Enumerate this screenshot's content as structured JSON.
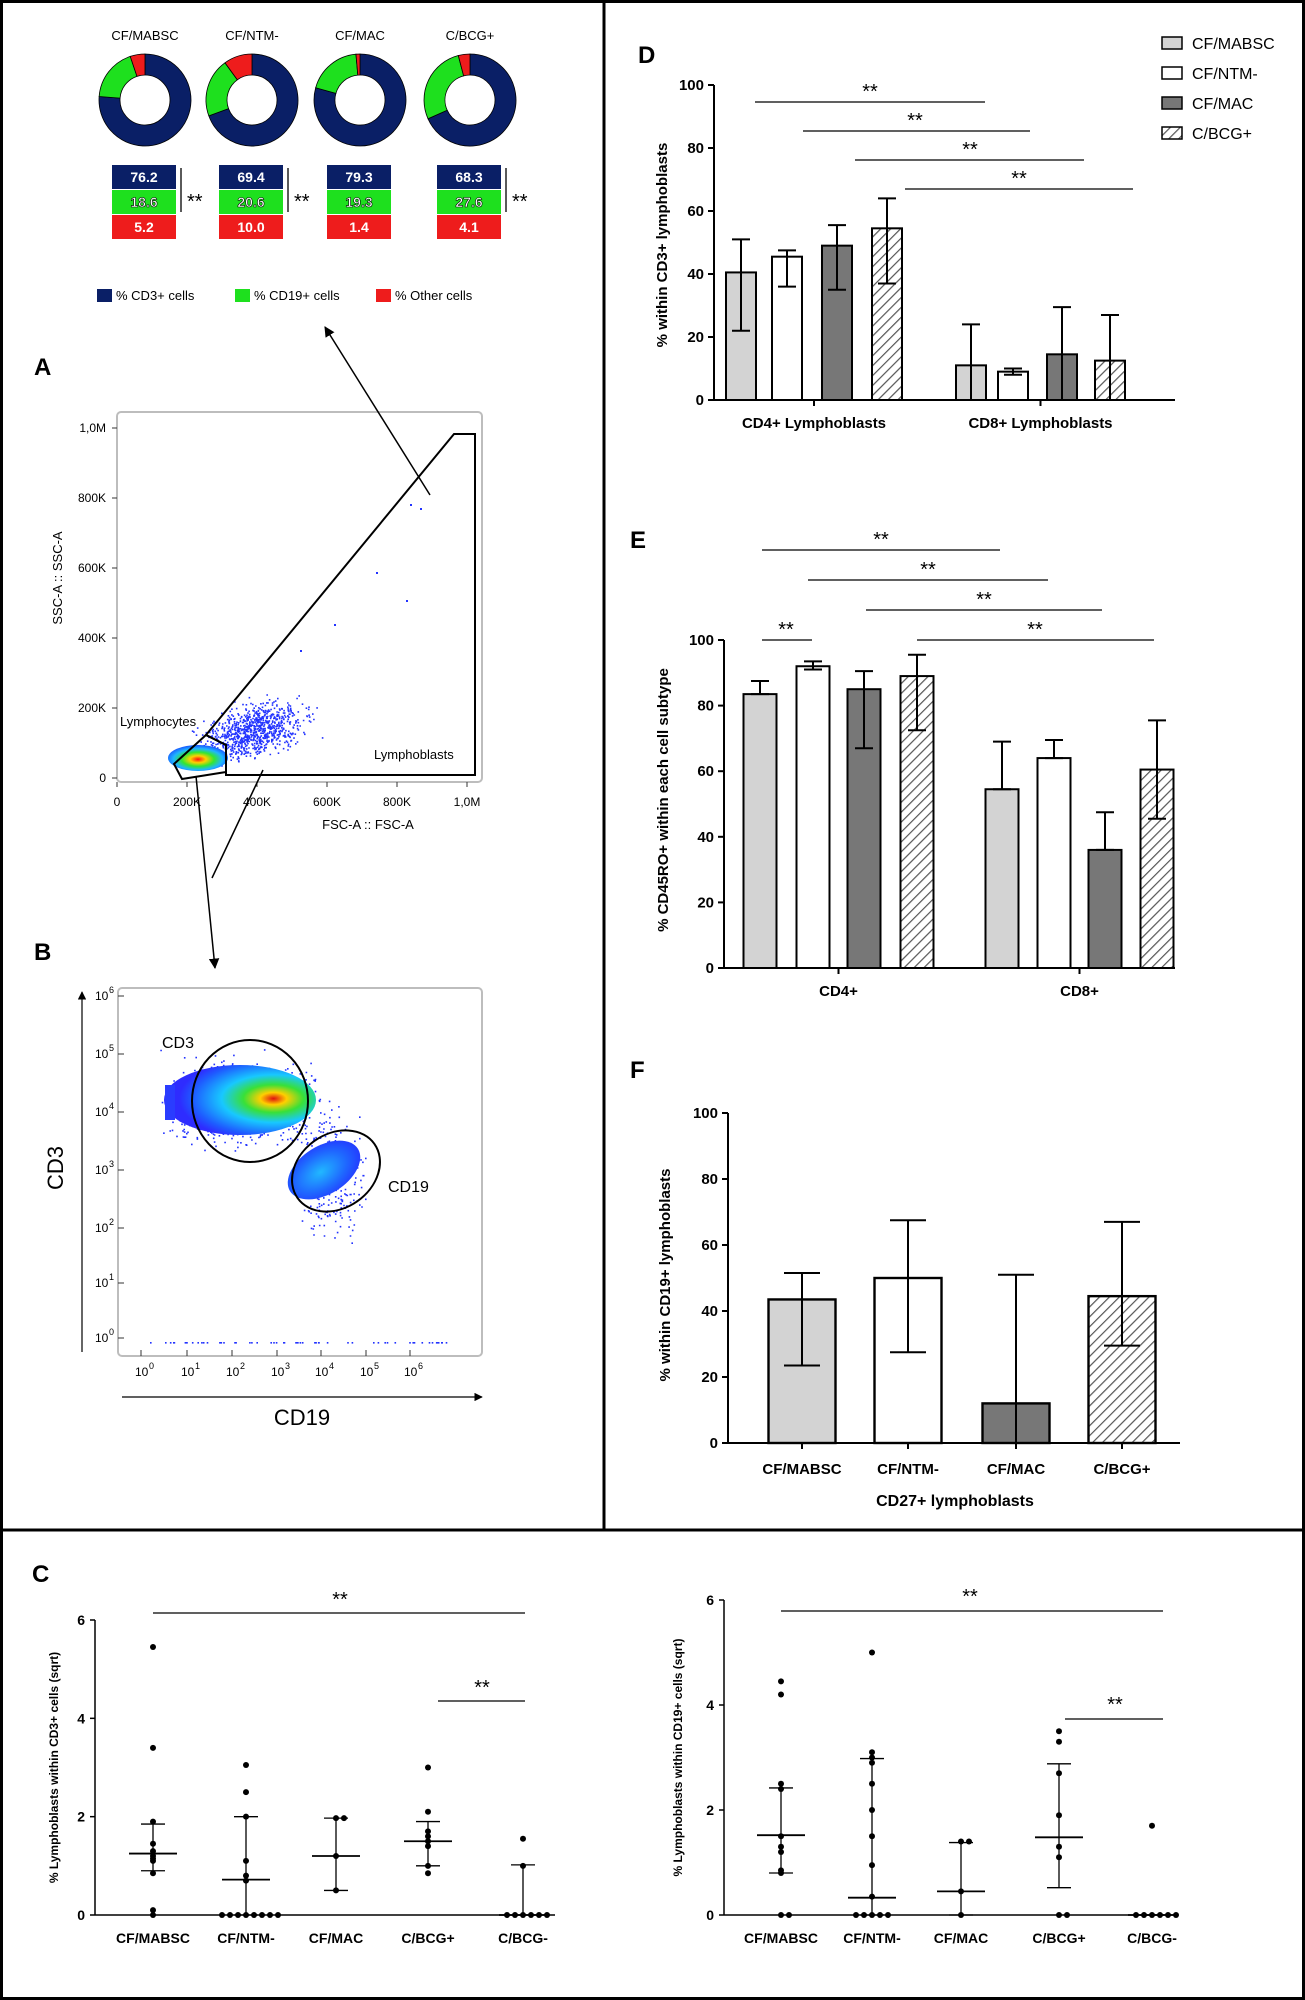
{
  "panel_labels": {
    "A": "A",
    "B": "B",
    "C": "C",
    "D": "D",
    "E": "E",
    "F": "F"
  },
  "sig_mark": "**",
  "colors": {
    "cd3": "#0a1f66",
    "cd19": "#1ee01e",
    "other": "#ee1c1c",
    "mabsc": "#d3d3d3",
    "ntm": "#ffffff",
    "mac": "#777777"
  },
  "donuts": {
    "groups": [
      {
        "name": "CF/MABSC",
        "cd3": "76.2",
        "cd19": "18.6",
        "other": "5.2"
      },
      {
        "name": "CF/NTM-",
        "cd3": "69.4",
        "cd19": "20.6",
        "other": "10.0"
      },
      {
        "name": "CF/MAC",
        "cd3": "79.3",
        "cd19": "19.3",
        "other": "1.4"
      },
      {
        "name": "C/BCG+",
        "cd3": "68.3",
        "cd19": "27.6",
        "other": "4.1"
      }
    ],
    "legend": [
      "% CD3+ cells",
      "% CD19+ cells",
      "% Other cells"
    ]
  },
  "scatter_a": {
    "xlabel": "FSC-A :: FSC-A",
    "ylabel": "SSC-A :: SSC-A",
    "xticks": [
      "0",
      "200K",
      "400K",
      "600K",
      "800K",
      "1,0M"
    ],
    "yticks": [
      "0",
      "200K",
      "400K",
      "600K",
      "800K",
      "1,0M"
    ],
    "gate_labels": [
      "Lymphocytes",
      "Lymphoblasts"
    ]
  },
  "scatter_b": {
    "xlabel": "CD19",
    "ylabel": "CD3",
    "gate_labels": [
      "CD3",
      "CD19"
    ]
  },
  "chart_data": [
    {
      "id": "D",
      "type": "bar",
      "ylabel": "% within CD3+ lymphoblasts",
      "ylim": [
        0,
        100
      ],
      "yticks": [
        "0",
        "20",
        "40",
        "60",
        "80",
        "100"
      ],
      "categories": [
        "CD4+ Lymphoblasts",
        "CD8+ Lymphoblasts"
      ],
      "legend": [
        "CF/MABSC",
        "CF/NTM-",
        "CF/MAC",
        "C/BCG+"
      ],
      "series": [
        {
          "name": "CF/MABSC",
          "values": [
            40.5,
            11
          ],
          "err_low": [
            22,
            0
          ],
          "err_high": [
            51,
            24
          ]
        },
        {
          "name": "CF/NTM-",
          "values": [
            45.5,
            9
          ],
          "err_low": [
            36,
            8
          ],
          "err_high": [
            47.5,
            10
          ]
        },
        {
          "name": "CF/MAC",
          "values": [
            49,
            14.5
          ],
          "err_low": [
            35,
            0
          ],
          "err_high": [
            55.5,
            29.5
          ]
        },
        {
          "name": "C/BCG+",
          "values": [
            54.5,
            12.5
          ],
          "err_low": [
            37,
            0
          ],
          "err_high": [
            64,
            27
          ]
        }
      ]
    },
    {
      "id": "E",
      "type": "bar",
      "ylabel": "% CD45RO+ within each cell subtype",
      "ylim": [
        0,
        100
      ],
      "yticks": [
        "0",
        "20",
        "40",
        "60",
        "80",
        "100"
      ],
      "categories": [
        "CD4+",
        "CD8+"
      ],
      "series": [
        {
          "name": "CF/MABSC",
          "values": [
            83.5,
            54.5
          ],
          "err_low": [
            83.5,
            54.5
          ],
          "err_high": [
            87.5,
            69
          ]
        },
        {
          "name": "CF/NTM-",
          "values": [
            92,
            64
          ],
          "err_low": [
            91,
            64
          ],
          "err_high": [
            93.5,
            69.5
          ]
        },
        {
          "name": "CF/MAC",
          "values": [
            85,
            36
          ],
          "err_low": [
            67,
            36
          ],
          "err_high": [
            90.5,
            47.5
          ]
        },
        {
          "name": "C/BCG+",
          "values": [
            89,
            60.5
          ],
          "err_low": [
            72.5,
            45.5
          ],
          "err_high": [
            95.5,
            75.5
          ]
        }
      ]
    },
    {
      "id": "F",
      "type": "bar",
      "ylabel": "% within CD19+ lymphoblasts",
      "xlabel": "CD27+ lymphoblasts",
      "ylim": [
        0,
        100
      ],
      "yticks": [
        "0",
        "20",
        "40",
        "60",
        "80",
        "100"
      ],
      "categories": [
        "CF/MABSC",
        "CF/NTM-",
        "CF/MAC",
        "C/BCG+"
      ],
      "values": [
        43.5,
        50,
        12,
        44.5
      ],
      "err_low": [
        23.5,
        27.5,
        0,
        29.5
      ],
      "err_high": [
        51.5,
        67.5,
        51,
        67
      ]
    },
    {
      "id": "C1",
      "type": "scatter",
      "ylabel": "% Lymphoblasts within CD3+ cells (sqrt)",
      "ylim": [
        0,
        6
      ],
      "yticks": [
        "0",
        "2",
        "4",
        "6"
      ],
      "categories": [
        "CF/MABSC",
        "CF/NTM-",
        "CF/MAC",
        "C/BCG+",
        "C/BCG-"
      ],
      "groups": [
        {
          "points": [
            5.45,
            3.4,
            1.9,
            1.45,
            1.3,
            1.2,
            1.15,
            1.1,
            0.85,
            0.1,
            0.0
          ],
          "median": 1.25,
          "q1": 0.9,
          "q3": 1.85
        },
        {
          "points": [
            3.05,
            2.5,
            2.0,
            1.1,
            0.8,
            0.7,
            0,
            0,
            0,
            0,
            0,
            0,
            0,
            0
          ],
          "median": 0.72,
          "q1": 0,
          "q3": 2.0
        },
        {
          "points": [
            1.97,
            1.97,
            1.2,
            0.5
          ],
          "median": 1.2,
          "q1": 0.5,
          "q3": 1.97
        },
        {
          "points": [
            3.0,
            2.1,
            1.7,
            1.6,
            1.5,
            1.4,
            1.0,
            0.85
          ],
          "median": 1.5,
          "q1": 1.0,
          "q3": 1.9
        },
        {
          "points": [
            1.55,
            1.0,
            0,
            0,
            0,
            0,
            0,
            0
          ],
          "median": 0,
          "q1": 0,
          "q3": 1.02
        }
      ]
    },
    {
      "id": "C2",
      "type": "scatter",
      "ylabel": "% Lymphoblasts within CD19+ cells (sqrt)",
      "ylim": [
        0,
        6
      ],
      "yticks": [
        "0",
        "2",
        "4",
        "6"
      ],
      "categories": [
        "CF/MABSC",
        "CF/NTM-",
        "CF/MAC",
        "C/BCG+",
        "C/BCG-"
      ],
      "groups": [
        {
          "points": [
            4.45,
            4.2,
            2.5,
            2.4,
            1.5,
            1.3,
            1.2,
            0.85,
            0.8,
            0,
            0
          ],
          "median": 1.52,
          "q1": 0.8,
          "q3": 2.42
        },
        {
          "points": [
            5.0,
            3.1,
            3.0,
            2.9,
            2.5,
            2.0,
            1.5,
            0.95,
            0.35,
            0,
            0,
            0,
            0,
            0
          ],
          "median": 0.33,
          "q1": 0,
          "q3": 2.98
        },
        {
          "points": [
            1.4,
            1.4,
            0.45,
            0
          ],
          "median": 0.45,
          "q1": 0,
          "q3": 1.38
        },
        {
          "points": [
            3.5,
            3.3,
            2.7,
            1.9,
            1.3,
            1.1,
            0,
            0
          ],
          "median": 1.48,
          "q1": 0.52,
          "q3": 2.88
        },
        {
          "points": [
            1.7,
            0,
            0,
            0,
            0,
            0,
            0
          ],
          "median": 0,
          "q1": 0,
          "q3": 0
        }
      ]
    }
  ]
}
